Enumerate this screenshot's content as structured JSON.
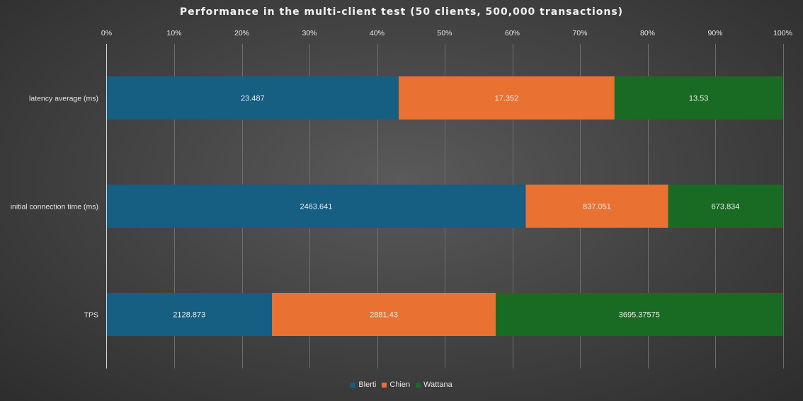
{
  "chart_data": {
    "type": "bar",
    "orientation": "horizontal",
    "stacking": "percent",
    "title": "Performance  in  the  multi-client  test (50  clients,  500,000  transactions)",
    "categories": [
      "latency average (ms)",
      "initial connection time (ms)",
      "TPS"
    ],
    "series": [
      {
        "name": "Blerti",
        "color": "#165e82",
        "values": [
          23.487,
          2463.641,
          2128.873
        ],
        "labels": [
          "23.487",
          "2463.641",
          "2128.873"
        ]
      },
      {
        "name": "Chien",
        "color": "#e97132",
        "values": [
          17.352,
          837.051,
          2881.43
        ],
        "labels": [
          "17.352",
          "837.051",
          "2881.43"
        ]
      },
      {
        "name": "Wattana",
        "color": "#196b24",
        "values": [
          13.53,
          673.834,
          3695.37575
        ],
        "labels": [
          "13.53",
          "673.834",
          "3695.37575"
        ]
      }
    ],
    "xaxis": {
      "ticks": [
        0,
        10,
        20,
        30,
        40,
        50,
        60,
        70,
        80,
        90,
        100
      ],
      "tick_labels": [
        "0%",
        "10%",
        "20%",
        "30%",
        "40%",
        "50%",
        "60%",
        "70%",
        "80%",
        "90%",
        "100%"
      ],
      "range": [
        0,
        100
      ],
      "position": "top"
    },
    "grid": true,
    "legend_position": "bottom",
    "data_labels": true
  }
}
